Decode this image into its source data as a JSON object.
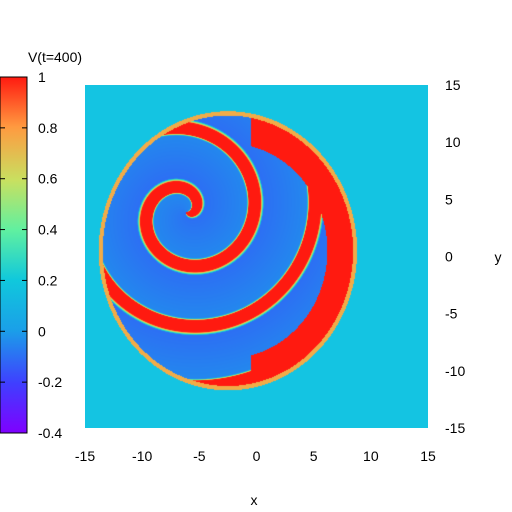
{
  "chart_data": {
    "type": "heatmap",
    "title": "",
    "xlabel": "x",
    "ylabel": "y",
    "colorbar_label": "V(t=400)",
    "xlim": [
      -15,
      15
    ],
    "ylim": [
      -15,
      15
    ],
    "x_ticks": [
      -15,
      -10,
      -5,
      0,
      5,
      10,
      15
    ],
    "y_ticks": [
      15,
      10,
      5,
      0,
      -5,
      -10,
      -15
    ],
    "colorbar_range": [
      -0.4,
      1
    ],
    "colorbar_ticks": [
      1,
      0.8,
      0.6,
      0.4,
      0.2,
      0,
      -0.2,
      -0.4
    ],
    "x_tick_labels": [
      "-15",
      "-10",
      "-5",
      "0",
      "5",
      "10",
      "15"
    ],
    "y_tick_labels": [
      "15",
      "10",
      "5",
      "0",
      "-5",
      "-10",
      "-15"
    ],
    "colorbar_tick_labels": [
      "1",
      "0.8",
      "0.6",
      "0.4",
      "0.2",
      "0",
      "-0.2",
      "-0.4"
    ],
    "field": {
      "background_value": 0.05,
      "interior_value": -0.05,
      "front_value": 1.0,
      "spiral_center": [
        -6.2,
        3.9
      ],
      "domain_center": [
        -2.5,
        0.5
      ],
      "domain_radius": 11.3,
      "outer_wave_band_x": [
        5.5,
        8.3
      ]
    },
    "colormap": "rainbow",
    "grid": false
  }
}
